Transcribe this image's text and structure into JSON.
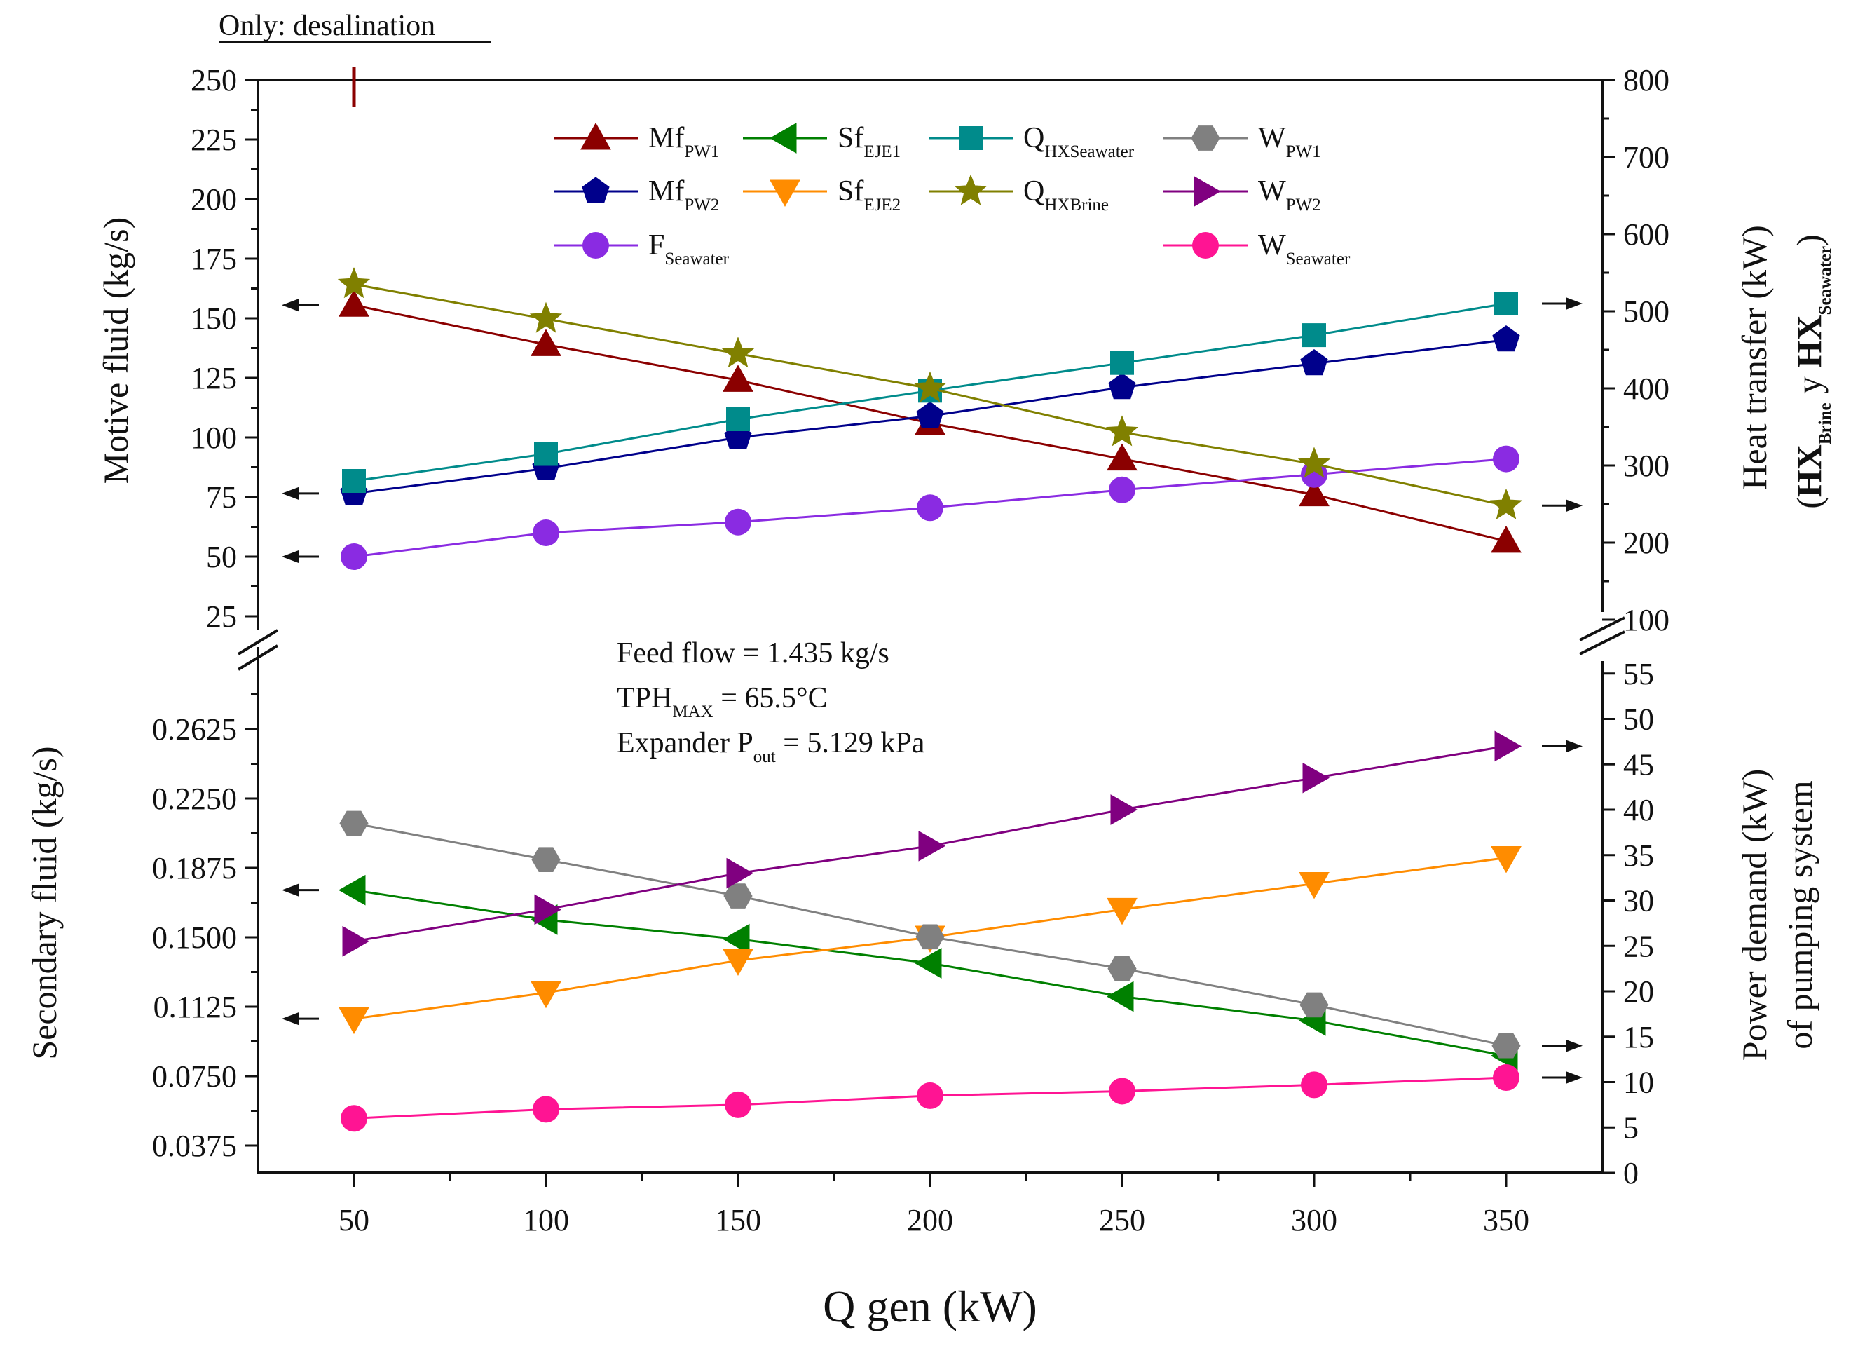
{
  "chart_data": {
    "type": "line",
    "note": "Only: desalination",
    "x": [
      50,
      100,
      150,
      200,
      250,
      300,
      350
    ],
    "xlabel": "Q gen (kW)",
    "xlim": [
      25,
      375
    ],
    "x_ticks": [
      50,
      100,
      150,
      200,
      250,
      300,
      350
    ],
    "annotations": [
      {
        "pre": "Feed flow = 1.435 kg/s",
        "sub": "",
        "post": ""
      },
      {
        "pre": "TPH",
        "sub": "MAX",
        "post": " = 65.5°C"
      },
      {
        "pre": "Expander P",
        "sub": "out",
        "post": " = 5.129 kPa"
      }
    ],
    "axes": {
      "upper_left": {
        "label": "Motive fluid (kg/s)",
        "range": [
          12.5,
          250
        ],
        "ticks": [
          "250",
          "225",
          "200",
          "175",
          "150",
          "125",
          "100",
          "75",
          "50",
          "25"
        ]
      },
      "upper_right": {
        "label_line1": "Heat transfer (kW)",
        "label_line2_parts": [
          "(",
          "HX",
          "Brine",
          " y ",
          "HX",
          "Seawater",
          ")"
        ],
        "range": [
          100,
          800
        ],
        "ticks": [
          "800",
          "700",
          "600",
          "500",
          "400",
          "300",
          "200",
          "100"
        ]
      },
      "lower_left": {
        "label": "Secondary fluid (kg/s)",
        "range": [
          0.025,
          0.29
        ],
        "ticks": [
          "0.2625",
          "0.2250",
          "0.1875",
          "0.1500",
          "0.1125",
          "0.0750",
          "0.0375"
        ]
      },
      "lower_right": {
        "label_line1": "Power demand (kW)",
        "label_line2": "of pumping system",
        "range": [
          0,
          60
        ],
        "ticks": [
          "55",
          "50",
          "45",
          "40",
          "35",
          "30",
          "25",
          "20",
          "15",
          "10",
          "5",
          "0"
        ]
      }
    },
    "series": [
      {
        "name": "Mf",
        "sub": "PW1",
        "axis": "upper_left",
        "color": "#8b0000",
        "marker": "triangle-up",
        "values": [
          155.5,
          139,
          124,
          106,
          91,
          76,
          56.5
        ]
      },
      {
        "name": "Mf",
        "sub": "PW2",
        "axis": "upper_left",
        "color": "#00008b",
        "marker": "pentagon",
        "values": [
          76.5,
          87,
          100,
          109,
          121,
          131,
          141
        ]
      },
      {
        "name": "F",
        "sub": "Seawater",
        "axis": "upper_left",
        "color": "#8a2be2",
        "marker": "circle",
        "values": [
          50,
          60,
          64.5,
          70.5,
          78,
          84.5,
          91
        ]
      },
      {
        "name": "Q",
        "sub": "HXSeawater",
        "axis": "upper_right",
        "color": "#008b8b",
        "marker": "square",
        "values": [
          280,
          315,
          360,
          397,
          433,
          469,
          510
        ]
      },
      {
        "name": "Q",
        "sub": "HXBrine",
        "axis": "upper_right",
        "color": "#808000",
        "marker": "star",
        "values": [
          535,
          490,
          445,
          400,
          343,
          302,
          248
        ]
      },
      {
        "name": "Sf",
        "sub": "EJE1",
        "axis": "lower_left",
        "color": "#008000",
        "marker": "triangle-left",
        "values": [
          0.1755,
          0.1595,
          0.149,
          0.136,
          0.118,
          0.105,
          0.086
        ]
      },
      {
        "name": "Sf",
        "sub": "EJE2",
        "axis": "lower_left",
        "color": "#ff8c00",
        "marker": "triangle-down",
        "values": [
          0.106,
          0.12,
          0.1375,
          0.15,
          0.165,
          0.179,
          0.193
        ]
      },
      {
        "name": "W",
        "sub": "PW1",
        "axis": "lower_right",
        "color": "#808080",
        "marker": "hexagon",
        "values": [
          38.5,
          34.5,
          30.5,
          26,
          22.5,
          18.5,
          14
        ]
      },
      {
        "name": "W",
        "sub": "PW2",
        "axis": "lower_right",
        "color": "#800080",
        "marker": "triangle-right",
        "values": [
          25.5,
          29,
          33,
          36,
          40,
          43.5,
          47
        ]
      },
      {
        "name": "W",
        "sub": "Seawater",
        "axis": "lower_right",
        "color": "#ff1493",
        "marker": "circle",
        "values": [
          6,
          7,
          7.5,
          8.5,
          9,
          9.7,
          10.5
        ]
      }
    ],
    "legend": [
      {
        "series": 0,
        "col": 0,
        "row": 0
      },
      {
        "series": 5,
        "col": 1,
        "row": 0
      },
      {
        "series": 3,
        "col": 2,
        "row": 0
      },
      {
        "series": 7,
        "col": 3,
        "row": 0
      },
      {
        "series": 1,
        "col": 0,
        "row": 1
      },
      {
        "series": 6,
        "col": 1,
        "row": 1
      },
      {
        "series": 4,
        "col": 2,
        "row": 1
      },
      {
        "series": 8,
        "col": 3,
        "row": 1
      },
      {
        "series": 2,
        "col": 0,
        "row": 2
      },
      {
        "series": 9,
        "col": 3,
        "row": 2
      }
    ],
    "axis_arrows": [
      {
        "series": 0,
        "side": "left"
      },
      {
        "series": 1,
        "side": "left"
      },
      {
        "series": 2,
        "side": "left"
      },
      {
        "series": 3,
        "side": "right"
      },
      {
        "series": 4,
        "side": "right"
      },
      {
        "series": 5,
        "side": "left"
      },
      {
        "series": 6,
        "side": "left"
      },
      {
        "series": 8,
        "side": "right"
      },
      {
        "series": 7,
        "side": "right"
      },
      {
        "series": 9,
        "side": "right"
      }
    ]
  }
}
